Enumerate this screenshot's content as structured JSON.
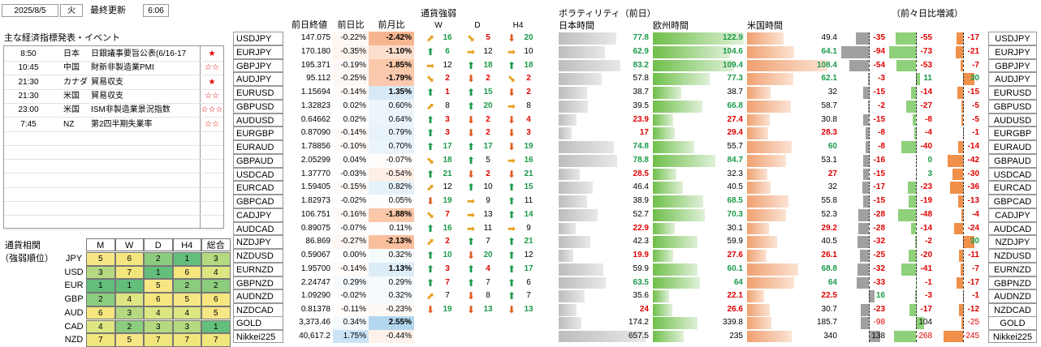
{
  "header": {
    "date": "2025/8/5",
    "weekday": "火",
    "last_updated_label": "最終更新",
    "time": "6:06"
  },
  "events": {
    "title": "主な経済指標発表・イベント",
    "rows": [
      {
        "time": "8:50",
        "country": "日本",
        "name": "日銀議事要旨公表(6/16-17",
        "stars": "★"
      },
      {
        "time": "10:45",
        "country": "中国",
        "name": "財新非製造業PMI",
        "stars": "☆☆"
      },
      {
        "time": "21:30",
        "country": "カナダ",
        "name": "貿易収支",
        "stars": "★"
      },
      {
        "time": "21:30",
        "country": "米国",
        "name": "貿易収支",
        "stars": "☆☆"
      },
      {
        "time": "23:00",
        "country": "米国",
        "name": "ISM非製造業景況指数",
        "stars": "☆☆☆"
      },
      {
        "time": "7:45",
        "country": "NZ",
        "name": "第2四半期失業率",
        "stars": "☆☆"
      }
    ]
  },
  "correlation": {
    "title_line1": "通貨相関",
    "title_line2": "（強弱順位）",
    "columns": [
      "M",
      "W",
      "D",
      "H4",
      "総合"
    ],
    "rows": [
      {
        "currency": "JPY",
        "values": [
          5,
          6,
          2,
          1,
          3
        ]
      },
      {
        "currency": "USD",
        "values": [
          3,
          7,
          1,
          6,
          4
        ]
      },
      {
        "currency": "EUR",
        "values": [
          1,
          1,
          5,
          2,
          2
        ]
      },
      {
        "currency": "GBP",
        "values": [
          2,
          4,
          6,
          5,
          6
        ]
      },
      {
        "currency": "AUD",
        "values": [
          6,
          3,
          4,
          4,
          5
        ]
      },
      {
        "currency": "CAD",
        "values": [
          4,
          2,
          3,
          3,
          1
        ]
      },
      {
        "currency": "NZD",
        "values": [
          7,
          5,
          7,
          7,
          7
        ]
      }
    ]
  },
  "prices": {
    "col_prev_close": "前日終値",
    "col_day_change": "前日比",
    "col_month_change": "前月比",
    "rows": [
      {
        "pair": "USDJPY",
        "close": "147.075",
        "day": "-0.22%",
        "month": "-2.42%"
      },
      {
        "pair": "EURJPY",
        "close": "170.180",
        "day": "-0.35%",
        "month": "-1.10%"
      },
      {
        "pair": "GBPJPY",
        "close": "195.371",
        "day": "-0.19%",
        "month": "-1.85%"
      },
      {
        "pair": "AUDJPY",
        "close": "95.112",
        "day": "-0.25%",
        "month": "-1.79%"
      },
      {
        "pair": "EURUSD",
        "close": "1.15694",
        "day": "-0.14%",
        "month": "1.35%"
      },
      {
        "pair": "GBPUSD",
        "close": "1.32823",
        "day": "0.02%",
        "month": "0.60%"
      },
      {
        "pair": "AUDUSD",
        "close": "0.64662",
        "day": "0.02%",
        "month": "0.64%"
      },
      {
        "pair": "EURGBP",
        "close": "0.87090",
        "day": "-0.14%",
        "month": "0.79%"
      },
      {
        "pair": "EURAUD",
        "close": "1.78856",
        "day": "-0.10%",
        "month": "0.70%"
      },
      {
        "pair": "GBPAUD",
        "close": "2.05299",
        "day": "0.04%",
        "month": "-0.07%"
      },
      {
        "pair": "USDCAD",
        "close": "1.37770",
        "day": "-0.03%",
        "month": "-0.54%"
      },
      {
        "pair": "EURCAD",
        "close": "1.59405",
        "day": "-0.15%",
        "month": "0.82%"
      },
      {
        "pair": "GBPCAD",
        "close": "1.82973",
        "day": "-0.02%",
        "month": "0.05%"
      },
      {
        "pair": "CADJPY",
        "close": "106.751",
        "day": "-0.16%",
        "month": "-1.88%"
      },
      {
        "pair": "AUDCAD",
        "close": "0.89075",
        "day": "-0.07%",
        "month": "0.11%"
      },
      {
        "pair": "NZDJPY",
        "close": "86.869",
        "day": "-0.27%",
        "month": "-2.13%"
      },
      {
        "pair": "NZDUSD",
        "close": "0.59067",
        "day": "0.00%",
        "month": "0.32%"
      },
      {
        "pair": "EURNZD",
        "close": "1.95700",
        "day": "-0.14%",
        "month": "1.13%"
      },
      {
        "pair": "GBPNZD",
        "close": "2.24747",
        "day": "0.29%",
        "month": "0.29%"
      },
      {
        "pair": "AUDNZD",
        "close": "1.09290",
        "day": "-0.02%",
        "month": "0.32%"
      },
      {
        "pair": "NZDCAD",
        "close": "0.81378",
        "day": "-0.11%",
        "month": "-0.23%"
      }
    ],
    "extra_rows": [
      {
        "pair": "GOLD",
        "close": "3,373.46",
        "day": "0.34%",
        "month": "2.55%"
      },
      {
        "pair": "Nikkei225",
        "close": "40,617.2",
        "day": "1.75%",
        "month": "-0.44%"
      }
    ]
  },
  "strength": {
    "title": "通貨強弱",
    "columns": [
      "W",
      "D",
      "H4"
    ],
    "rows": [
      [
        [
          "ur",
          16,
          "g"
        ],
        [
          "dr",
          5,
          "r"
        ],
        [
          "d",
          20,
          "g"
        ]
      ],
      [
        [
          "u",
          6,
          "g"
        ],
        [
          "r",
          12,
          "k"
        ],
        [
          "r",
          10,
          "k"
        ]
      ],
      [
        [
          "r",
          12,
          "k"
        ],
        [
          "u",
          18,
          "g"
        ],
        [
          "u",
          18,
          "g"
        ]
      ],
      [
        [
          "dr",
          2,
          "r"
        ],
        [
          "d",
          2,
          "r"
        ],
        [
          "dr",
          2,
          "r"
        ]
      ],
      [
        [
          "u",
          1,
          "r"
        ],
        [
          "u",
          15,
          "g"
        ],
        [
          "d",
          2,
          "r"
        ]
      ],
      [
        [
          "ur",
          8,
          "k"
        ],
        [
          "u",
          20,
          "g"
        ],
        [
          "r",
          8,
          "k"
        ]
      ],
      [
        [
          "u",
          3,
          "r"
        ],
        [
          "d",
          2,
          "r"
        ],
        [
          "d",
          4,
          "r"
        ]
      ],
      [
        [
          "u",
          3,
          "r"
        ],
        [
          "d",
          2,
          "r"
        ],
        [
          "d",
          3,
          "r"
        ]
      ],
      [
        [
          "u",
          17,
          "g"
        ],
        [
          "u",
          17,
          "g"
        ],
        [
          "d",
          19,
          "g"
        ]
      ],
      [
        [
          "dr",
          18,
          "g"
        ],
        [
          "u",
          5,
          "k"
        ],
        [
          "r",
          16,
          "g"
        ]
      ],
      [
        [
          "u",
          21,
          "g"
        ],
        [
          "d",
          2,
          "r"
        ],
        [
          "d",
          21,
          "g"
        ]
      ],
      [
        [
          "ur",
          12,
          "k"
        ],
        [
          "u",
          10,
          "k"
        ],
        [
          "u",
          15,
          "g"
        ]
      ],
      [
        [
          "d",
          19,
          "g"
        ],
        [
          "r",
          9,
          "k"
        ],
        [
          "u",
          11,
          "k"
        ]
      ],
      [
        [
          "dr",
          7,
          "r"
        ],
        [
          "r",
          13,
          "k"
        ],
        [
          "u",
          14,
          "g"
        ]
      ],
      [
        [
          "u",
          16,
          "g"
        ],
        [
          "r",
          11,
          "k"
        ],
        [
          "r",
          9,
          "k"
        ]
      ],
      [
        [
          "ur",
          2,
          "r"
        ],
        [
          "u",
          7,
          "k"
        ],
        [
          "u",
          21,
          "g"
        ]
      ],
      [
        [
          "u",
          10,
          "g"
        ],
        [
          "d",
          20,
          "g"
        ],
        [
          "u",
          12,
          "k"
        ]
      ],
      [
        [
          "u",
          3,
          "r"
        ],
        [
          "u",
          4,
          "r"
        ],
        [
          "u",
          17,
          "g"
        ]
      ],
      [
        [
          "u",
          7,
          "r"
        ],
        [
          "u",
          7,
          "k"
        ],
        [
          "u",
          6,
          "k"
        ]
      ],
      [
        [
          "ur",
          7,
          "k"
        ],
        [
          "d",
          8,
          "k"
        ],
        [
          "u",
          7,
          "k"
        ]
      ],
      [
        [
          "d",
          19,
          "g"
        ],
        [
          "d",
          13,
          "g"
        ],
        [
          "d",
          13,
          "g"
        ]
      ]
    ]
  },
  "volatility": {
    "title": "ボラティリティ（前日）",
    "change_title": "（前々日比増減）",
    "col_japan": "日本時間",
    "col_europe": "欧州時間",
    "col_us": "米国時間",
    "rows": [
      {
        "jp": 77.8,
        "eu": 122.9,
        "us": 49.4,
        "cjp": -35,
        "ceu": -55,
        "cus": -17
      },
      {
        "jp": 62.9,
        "eu": 104.6,
        "us": 64.1,
        "cjp": -94,
        "ceu": -73,
        "cus": -21
      },
      {
        "jp": 83.2,
        "eu": 109.4,
        "us": 108.4,
        "cjp": -54,
        "ceu": -53,
        "cus": -7
      },
      {
        "jp": 57.8,
        "eu": 77.3,
        "us": 62.1,
        "cjp": -3,
        "ceu": 11,
        "cus": 30
      },
      {
        "jp": 38.7,
        "eu": 38.7,
        "us": 32.0,
        "cjp": -15,
        "ceu": -14,
        "cus": -15
      },
      {
        "jp": 39.5,
        "eu": 66.8,
        "us": 58.7,
        "cjp": -2,
        "ceu": -27,
        "cus": -5
      },
      {
        "jp": 23.9,
        "eu": 27.4,
        "us": 30.8,
        "cjp": -15,
        "ceu": -8,
        "cus": -5
      },
      {
        "jp": 17.0,
        "eu": 29.4,
        "us": 28.3,
        "cjp": -8,
        "ceu": -4,
        "cus": -1
      },
      {
        "jp": 74.8,
        "eu": 55.7,
        "us": 60.0,
        "cjp": -8,
        "ceu": -40,
        "cus": -14
      },
      {
        "jp": 78.8,
        "eu": 84.7,
        "us": 53.1,
        "cjp": -16,
        "ceu": 0,
        "cus": -42
      },
      {
        "jp": 28.5,
        "eu": 32.3,
        "us": 27.0,
        "cjp": -15,
        "ceu": 3,
        "cus": -30
      },
      {
        "jp": 46.4,
        "eu": 40.5,
        "us": 32.0,
        "cjp": -17,
        "ceu": -23,
        "cus": -36
      },
      {
        "jp": 38.9,
        "eu": 68.5,
        "us": 55.8,
        "cjp": -15,
        "ceu": -19,
        "cus": -13
      },
      {
        "jp": 52.7,
        "eu": 70.3,
        "us": 52.3,
        "cjp": -28,
        "ceu": -48,
        "cus": -4
      },
      {
        "jp": 22.9,
        "eu": 30.1,
        "us": 29.2,
        "cjp": -28,
        "ceu": -14,
        "cus": -24
      },
      {
        "jp": 42.3,
        "eu": 59.9,
        "us": 40.5,
        "cjp": -32,
        "ceu": -2,
        "cus": 30
      },
      {
        "jp": 19.9,
        "eu": 27.6,
        "us": 26.1,
        "cjp": -25,
        "ceu": -20,
        "cus": -11
      },
      {
        "jp": 59.9,
        "eu": 60.1,
        "us": 68.8,
        "cjp": -32,
        "ceu": -41,
        "cus": -7
      },
      {
        "jp": 63.5,
        "eu": 64.0,
        "us": 64.0,
        "cjp": -33,
        "ceu": -1,
        "cus": -17
      },
      {
        "jp": 35.6,
        "eu": 22.1,
        "us": 22.5,
        "cjp": 16,
        "ceu": -3,
        "cus": -1
      },
      {
        "jp": 24.0,
        "eu": 26.6,
        "us": 30.7,
        "cjp": -23,
        "ceu": -17,
        "cus": -12
      }
    ],
    "extra_rows": [
      {
        "jp": 174.2,
        "eu": 339.8,
        "us": 185.7,
        "cjp": -98,
        "ceu": 104,
        "cus": -25
      },
      {
        "jp": 657.5,
        "eu": 235.0,
        "us": 340.0,
        "cjp": 138,
        "ceu": -268,
        "cus": -245
      }
    ]
  },
  "colors": {
    "green_text": "#1a9a4a",
    "red_text": "#e00000",
    "rank_colors": [
      "#63be7b",
      "#8ccc7e",
      "#b5d980",
      "#dde683",
      "#f7e685",
      "#f5e680",
      "#f0e67c"
    ]
  }
}
